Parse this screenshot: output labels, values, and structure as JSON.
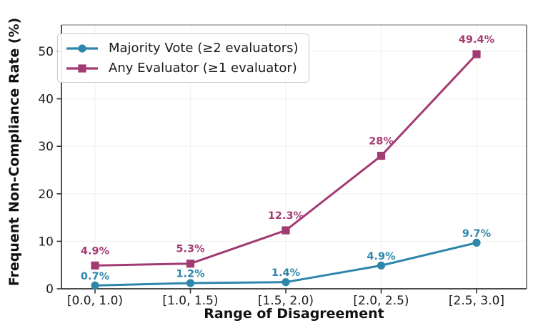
{
  "chart_data": {
    "type": "line",
    "title": "",
    "xlabel": "Range of Disagreement",
    "ylabel": "Frequent Non-Compliance Rate (%)",
    "categories": [
      "[0.0, 1.0)",
      "[1.0, 1.5)",
      "[1.5, 2.0)",
      "[2.0, 2.5)",
      "[2.5, 3.0]"
    ],
    "series": [
      {
        "name": "Majority Vote (≥2 evaluators)",
        "values": [
          0.7,
          1.2,
          1.4,
          4.9,
          9.7
        ],
        "labels": [
          "0.7%",
          "1.2%",
          "1.4%",
          "4.9%",
          "9.7%"
        ],
        "color": "#2E86AB",
        "marker": "circle"
      },
      {
        "name": "Any Evaluator (≥1 evaluator)",
        "values": [
          4.9,
          5.3,
          12.3,
          28,
          49.4
        ],
        "labels": [
          "4.9%",
          "5.3%",
          "12.3%",
          "28%",
          "49.4%"
        ],
        "color": "#A23B72",
        "marker": "square"
      }
    ],
    "yticks": [
      0,
      10,
      20,
      30,
      40,
      50
    ],
    "ylim": [
      0,
      55.5
    ],
    "grid": "faint-both-axes",
    "legend_position": "upper-left",
    "colors": {
      "text": "#1a1a1a",
      "spine": "#333333",
      "grid": "#f1f1f1",
      "background": "#ffffff"
    }
  }
}
